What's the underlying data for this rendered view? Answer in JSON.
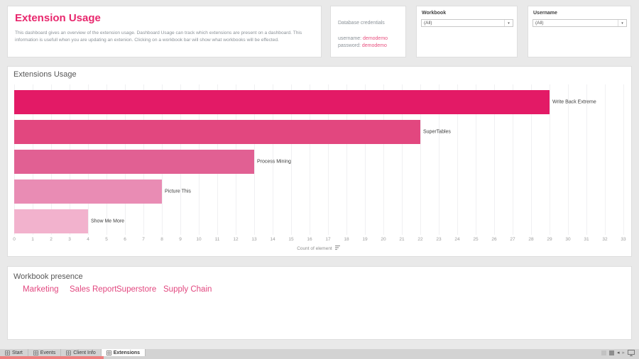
{
  "window": {
    "background": "#e9e9e9",
    "accent_pink": "#e8276d",
    "tab_underline": "#ee7f7f"
  },
  "header": {
    "title": "Extension Usage",
    "description": "This dashboard gives an overview of the extension usage. Dashboard Usage can track which extensions are present on a dashboard. This information is usefull when you are updating an extenion. Clicking on a workbook bar will show what workbooks will be effected."
  },
  "credentials": {
    "title": "Database credentials",
    "username_label": "username:",
    "username_value": "demodemo",
    "password_label": "password:",
    "password_value": "demodemo"
  },
  "filters": {
    "workbook": {
      "label": "Workbook",
      "value": "(All)"
    },
    "username": {
      "label": "Username",
      "value": "(All)"
    }
  },
  "chart_data": {
    "type": "bar",
    "orientation": "horizontal",
    "title": "Extensions Usage",
    "categories": [
      "Write Back Extreme",
      "SuperTables",
      "Process Mining",
      "Picture This",
      "Show Me More"
    ],
    "values": [
      29,
      22,
      13,
      8,
      4
    ],
    "bar_colors": [
      "#e31a66",
      "#e2477f",
      "#e16093",
      "#e98cb4",
      "#f2b2cd"
    ],
    "xlabel": "Count of element",
    "xlim": [
      0,
      33
    ],
    "x_tick_step": 1,
    "grid": true,
    "legend": false
  },
  "workbook_presence": {
    "title": "Workbook presence",
    "items": [
      "Marketing",
      "Sales Report",
      "Superstore",
      "Supply Chain"
    ]
  },
  "sheet_tabs": [
    {
      "label": "Start",
      "active": false
    },
    {
      "label": "Events",
      "active": false
    },
    {
      "label": "Client Info",
      "active": false
    },
    {
      "label": "Extensions",
      "active": true
    }
  ],
  "icons": {
    "dropdown_arrow": "▾",
    "prev_arrow": "◂",
    "next_arrow": "▸",
    "statusbar": [
      "grid-view-icon",
      "filmstrip-view-icon",
      "previous-sheet-icon",
      "next-sheet-icon",
      "presentation-mode-icon"
    ],
    "tab_icon": "sheet-grid-icon",
    "axis_sort": "sort-descending-icon"
  }
}
